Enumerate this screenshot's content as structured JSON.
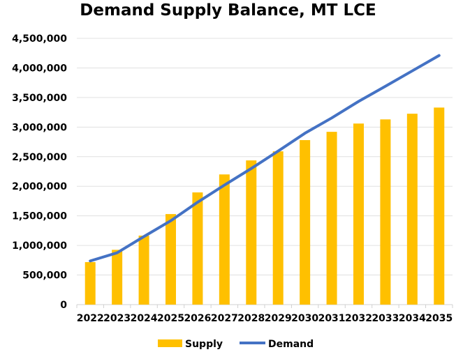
{
  "chart_data": {
    "type": "bar",
    "title": "Demand Supply Balance, MT LCE",
    "xlabel": "",
    "ylabel": "",
    "ylim": [
      0,
      4500000
    ],
    "yticks": [
      "0",
      "500,000",
      "1,000,000",
      "1,500,000",
      "2,000,000",
      "2,500,000",
      "3,000,000",
      "3,500,000",
      "4,000,000",
      "4,500,000"
    ],
    "ytick_values": [
      0,
      500000,
      1000000,
      1500000,
      2000000,
      2500000,
      3000000,
      3500000,
      4000000,
      4500000
    ],
    "grid": true,
    "legend": "bottom",
    "categories": [
      "2022",
      "2023",
      "2024",
      "2025",
      "2026",
      "2027",
      "2028",
      "2029",
      "2030",
      "2031",
      "2032",
      "2033",
      "2034",
      "2035"
    ],
    "series": [
      {
        "name": "Supply",
        "type": "bar",
        "color": "#FFC000",
        "values": [
          718000,
          926000,
          1166000,
          1530000,
          1896000,
          2200000,
          2437000,
          2590000,
          2780000,
          2920000,
          3060000,
          3130000,
          3226000,
          3330000
        ]
      },
      {
        "name": "Demand",
        "type": "line",
        "color": "#4472C4",
        "values": [
          738000,
          875000,
          1150000,
          1417000,
          1730000,
          2020000,
          2300000,
          2594000,
          2896000,
          3155000,
          3434000,
          3690000,
          3950000,
          4210000
        ]
      }
    ]
  }
}
